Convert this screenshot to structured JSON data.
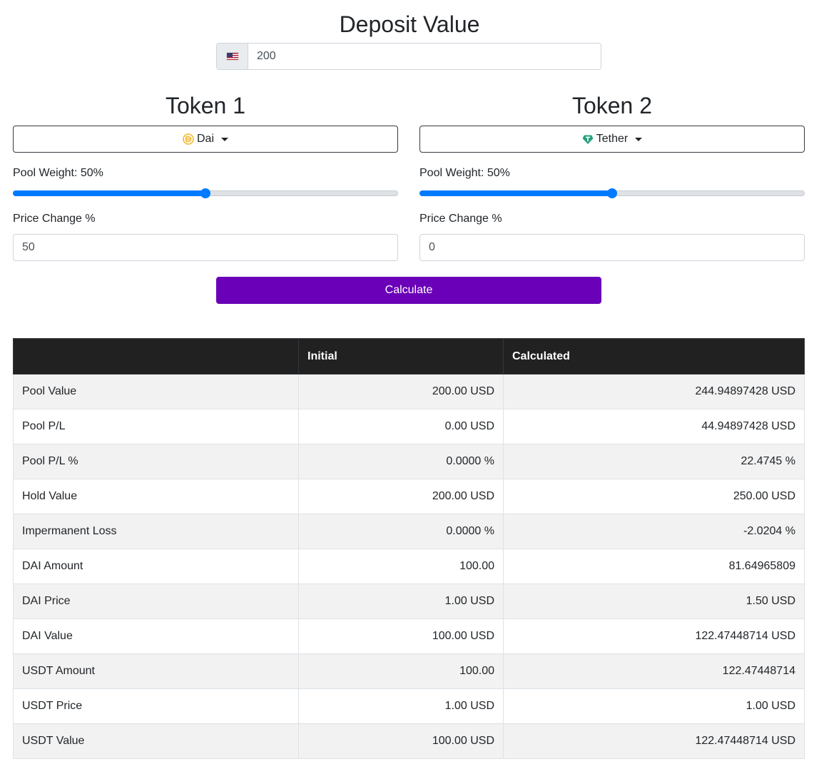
{
  "deposit": {
    "title": "Deposit Value",
    "currency_icon": "us-flag-icon",
    "value": "200"
  },
  "tokens": [
    {
      "title": "Token 1",
      "selected": "Dai",
      "icon": "dai-icon",
      "icon_color": "#f4b731",
      "pool_weight_label": "Pool Weight: 50%",
      "pool_weight_value": 50,
      "price_change_label": "Price Change %",
      "price_change_value": "50"
    },
    {
      "title": "Token 2",
      "selected": "Tether",
      "icon": "tether-icon",
      "icon_color": "#26a17b",
      "pool_weight_label": "Pool Weight: 50%",
      "pool_weight_value": 50,
      "price_change_label": "Price Change %",
      "price_change_value": "0"
    }
  ],
  "calculate_label": "Calculate",
  "accent_color": "#6a00b8",
  "slider_color": "#007bff",
  "table": {
    "headers": [
      "",
      "Initial",
      "Calculated"
    ],
    "rows": [
      [
        "Pool Value",
        "200.00 USD",
        "244.94897428 USD"
      ],
      [
        "Pool P/L",
        "0.00 USD",
        "44.94897428 USD"
      ],
      [
        "Pool P/L %",
        "0.0000 %",
        "22.4745 %"
      ],
      [
        "Hold Value",
        "200.00 USD",
        "250.00 USD"
      ],
      [
        "Impermanent Loss",
        "0.0000 %",
        "-2.0204 %"
      ],
      [
        "DAI Amount",
        "100.00",
        "81.64965809"
      ],
      [
        "DAI Price",
        "1.00 USD",
        "1.50 USD"
      ],
      [
        "DAI Value",
        "100.00 USD",
        "122.47448714 USD"
      ],
      [
        "USDT Amount",
        "100.00",
        "122.47448714"
      ],
      [
        "USDT Price",
        "1.00 USD",
        "1.00 USD"
      ],
      [
        "USDT Value",
        "100.00 USD",
        "122.47448714 USD"
      ]
    ]
  }
}
